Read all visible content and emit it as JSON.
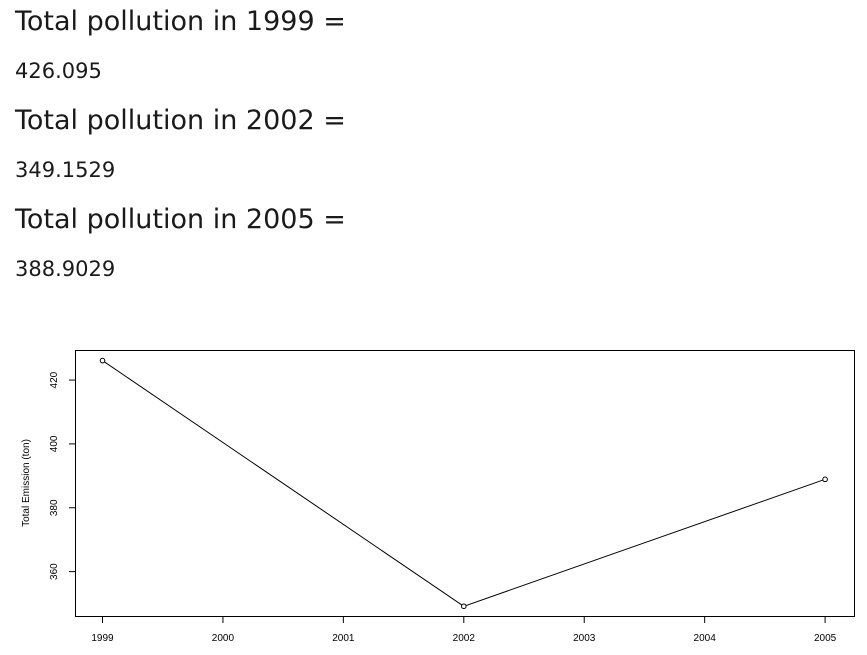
{
  "totals": [
    {
      "heading": "Total pollution in 1999 =",
      "value": "426.095"
    },
    {
      "heading": "Total pollution in 2002 =",
      "value": "349.1529"
    },
    {
      "heading": "Total pollution in 2005 =",
      "value": "388.9029"
    }
  ],
  "chart_data": {
    "type": "line",
    "title": "",
    "xlabel": "",
    "ylabel": "Total Emission (ton)",
    "x": [
      1999,
      2002,
      2005
    ],
    "series": [
      {
        "values": [
          426.095,
          349.1529,
          388.9029
        ]
      }
    ],
    "x_ticks": [
      "1999",
      "2000",
      "2001",
      "2002",
      "2003",
      "2004",
      "2005"
    ],
    "y_ticks": [
      "360",
      "380",
      "400",
      "420"
    ],
    "xlim": [
      1998.78,
      2005.24
    ],
    "ylim": [
      346.1,
      429.1
    ],
    "markers": "open-circle",
    "grid": false,
    "legend": "none",
    "colors": {
      "line": "#000000",
      "axis": "#000000"
    }
  }
}
